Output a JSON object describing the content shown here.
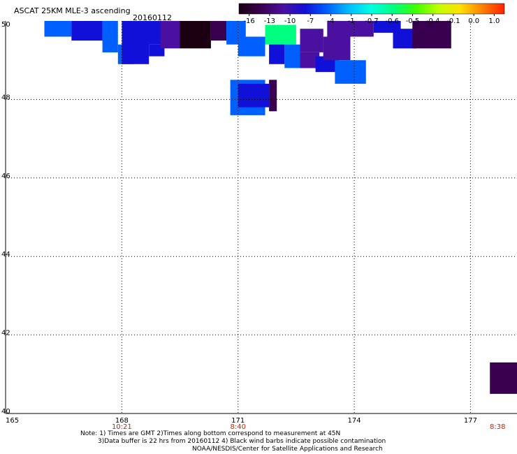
{
  "chart_data": {
    "type": "heatmap",
    "title": "ASCAT 25KM MLE-3 ascending",
    "date": "20160112",
    "xlim": [
      165,
      178.2
    ],
    "ylim": [
      40,
      50
    ],
    "x_ticks": [
      "165",
      "168",
      "171",
      "174",
      "177"
    ],
    "y_ticks": [
      "50",
      "48",
      "46",
      "44",
      "42",
      "40"
    ],
    "time_labels": [
      {
        "lon": 168,
        "text": "10:21"
      },
      {
        "lon": 171,
        "text": "8:40"
      },
      {
        "lon": 177.7,
        "text": "8:38"
      }
    ],
    "grid": true,
    "colorbar": {
      "labels": [
        "-16",
        "-13",
        "-10",
        "-7",
        "-4",
        "-1",
        "-0.7",
        "-0.6",
        "-0.5",
        "-0.4",
        "-0.1",
        "0.0",
        "1.0"
      ],
      "colors": [
        "#1a0010",
        "#3a0050",
        "#4a10a0",
        "#1010d8",
        "#0060ff",
        "#00c0ff",
        "#00ffe0",
        "#00ff80",
        "#40ff00",
        "#c0ff00",
        "#ffe000",
        "#ff8000",
        "#ff2000"
      ]
    },
    "cells": [
      {
        "x": 166.0,
        "y": 49.6,
        "w": 0.7,
        "h": 0.4,
        "v": -4.5
      },
      {
        "x": 166.7,
        "y": 49.5,
        "w": 0.8,
        "h": 0.5,
        "v": -5.5
      },
      {
        "x": 167.5,
        "y": 49.2,
        "w": 0.4,
        "h": 0.8,
        "v": -5.0
      },
      {
        "x": 167.9,
        "y": 48.9,
        "w": 0.4,
        "h": 0.5,
        "v": -3.0
      },
      {
        "x": 168.0,
        "y": 48.9,
        "w": 0.7,
        "h": 1.1,
        "v": -5.5
      },
      {
        "x": 168.5,
        "y": 49.4,
        "w": 0.6,
        "h": 0.6,
        "v": -7.5
      },
      {
        "x": 168.7,
        "y": 49.1,
        "w": 0.4,
        "h": 0.3,
        "v": -7.0
      },
      {
        "x": 169.0,
        "y": 49.3,
        "w": 0.5,
        "h": 0.7,
        "v": -11.0
      },
      {
        "x": 169.5,
        "y": 49.3,
        "w": 0.8,
        "h": 0.7,
        "v": -15.0
      },
      {
        "x": 170.3,
        "y": 49.5,
        "w": 0.4,
        "h": 0.5,
        "v": -13.0
      },
      {
        "x": 170.7,
        "y": 49.4,
        "w": 0.5,
        "h": 0.6,
        "v": -5.0
      },
      {
        "x": 171.0,
        "y": 49.1,
        "w": 0.7,
        "h": 0.5,
        "v": -3.0
      },
      {
        "x": 171.7,
        "y": 49.4,
        "w": 0.8,
        "h": 0.5,
        "v": -0.6
      },
      {
        "x": 171.8,
        "y": 48.9,
        "w": 0.4,
        "h": 0.5,
        "v": -6.0
      },
      {
        "x": 172.2,
        "y": 48.8,
        "w": 0.4,
        "h": 0.6,
        "v": -4.0
      },
      {
        "x": 172.6,
        "y": 49.2,
        "w": 0.6,
        "h": 0.6,
        "v": -10.5
      },
      {
        "x": 172.6,
        "y": 48.8,
        "w": 0.5,
        "h": 0.4,
        "v": -9.5
      },
      {
        "x": 173.0,
        "y": 48.7,
        "w": 0.6,
        "h": 0.4,
        "v": -6.0
      },
      {
        "x": 173.2,
        "y": 49.0,
        "w": 0.7,
        "h": 0.6,
        "v": -10.0
      },
      {
        "x": 173.5,
        "y": 48.4,
        "w": 0.8,
        "h": 0.6,
        "v": -4.0
      },
      {
        "x": 173.3,
        "y": 49.6,
        "w": 1.2,
        "h": 0.4,
        "v": -11.0
      },
      {
        "x": 174.5,
        "y": 49.7,
        "w": 0.7,
        "h": 0.3,
        "v": -7.5
      },
      {
        "x": 175.0,
        "y": 49.3,
        "w": 0.6,
        "h": 0.5,
        "v": -8.0
      },
      {
        "x": 175.5,
        "y": 49.3,
        "w": 1.0,
        "h": 0.7,
        "v": -11.5
      },
      {
        "x": 170.8,
        "y": 47.6,
        "w": 0.9,
        "h": 0.9,
        "v": -4.0
      },
      {
        "x": 171.0,
        "y": 47.8,
        "w": 0.8,
        "h": 0.6,
        "v": -7.0
      },
      {
        "x": 171.8,
        "y": 47.7,
        "w": 0.2,
        "h": 0.8,
        "v": -14.0
      },
      {
        "x": 177.5,
        "y": 40.5,
        "w": 1.2,
        "h": 0.8,
        "v": -12.0
      }
    ]
  },
  "notes": {
    "line1": "Note: 1) Times are GMT 2)Times along bottom correspond to measurement at 45N",
    "line2": "3)Data buffer is 22 hrs from 20160112 4) Black wind barbs indicate possible contamination",
    "line3": "NOAA/NESDIS/Center for Satellite Applications and Research"
  }
}
